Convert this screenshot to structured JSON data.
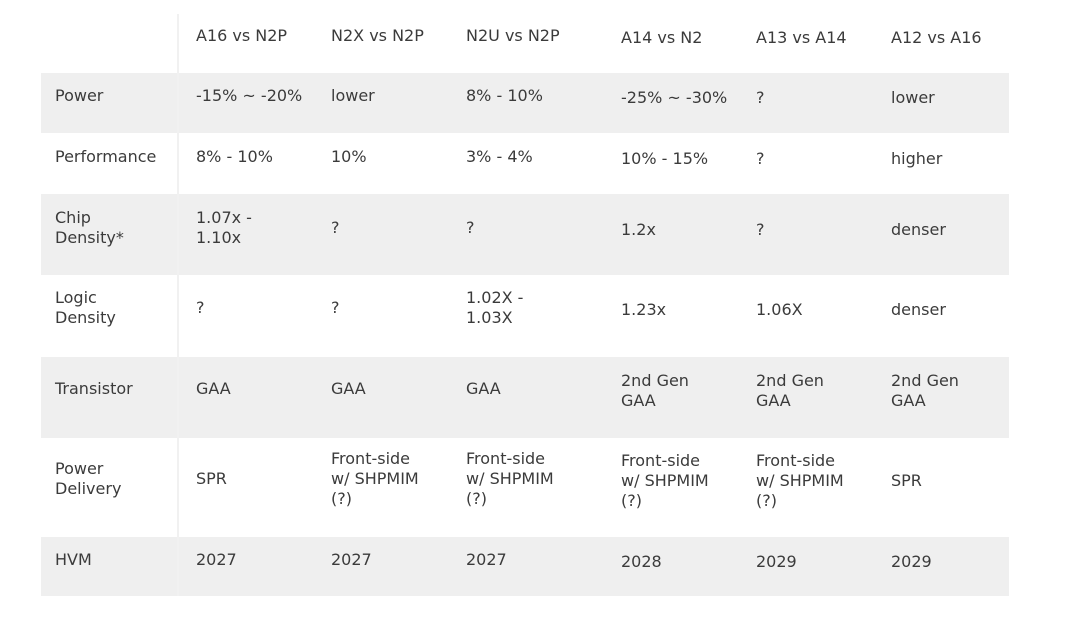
{
  "table": {
    "headers": [
      "",
      "A16 vs N2P",
      "N2X vs N2P",
      "N2U vs N2P",
      "A14 vs N2",
      "A13 vs A14",
      "A12 vs A16"
    ],
    "rows": [
      {
        "label": "Power",
        "cells": [
          "-15% ~ -20%",
          "lower",
          "8% - 10%",
          "-25% ~ -30%",
          "?",
          "lower"
        ]
      },
      {
        "label": "Performance",
        "cells": [
          "8% - 10%",
          "10%",
          "3% - 4%",
          "10% - 15%",
          "?",
          "higher"
        ]
      },
      {
        "label": "Chip\nDensity*",
        "cells": [
          "1.07x -\n1.10x",
          "?",
          "?",
          "1.2x",
          "?",
          "denser"
        ]
      },
      {
        "label": "Logic\nDensity",
        "cells": [
          "?",
          "?",
          "1.02X -\n1.03X",
          "1.23x",
          "1.06X",
          "denser"
        ]
      },
      {
        "label": "Transistor",
        "cells": [
          "GAA",
          "GAA",
          "GAA",
          "2nd Gen\nGAA",
          "2nd Gen\nGAA",
          "2nd Gen\nGAA"
        ]
      },
      {
        "label": "Power\nDelivery",
        "cells": [
          "SPR",
          "Front-side\nw/ SHPMIM\n(?)",
          "Front-side\nw/ SHPMIM\n(?)",
          "Front-side\nw/ SHPMIM\n(?)",
          "Front-side\nw/ SHPMIM\n(?)",
          "SPR"
        ]
      },
      {
        "label": "HVM",
        "cells": [
          "2027",
          "2027",
          "2027",
          "2028",
          "2029",
          "2029"
        ]
      }
    ]
  }
}
